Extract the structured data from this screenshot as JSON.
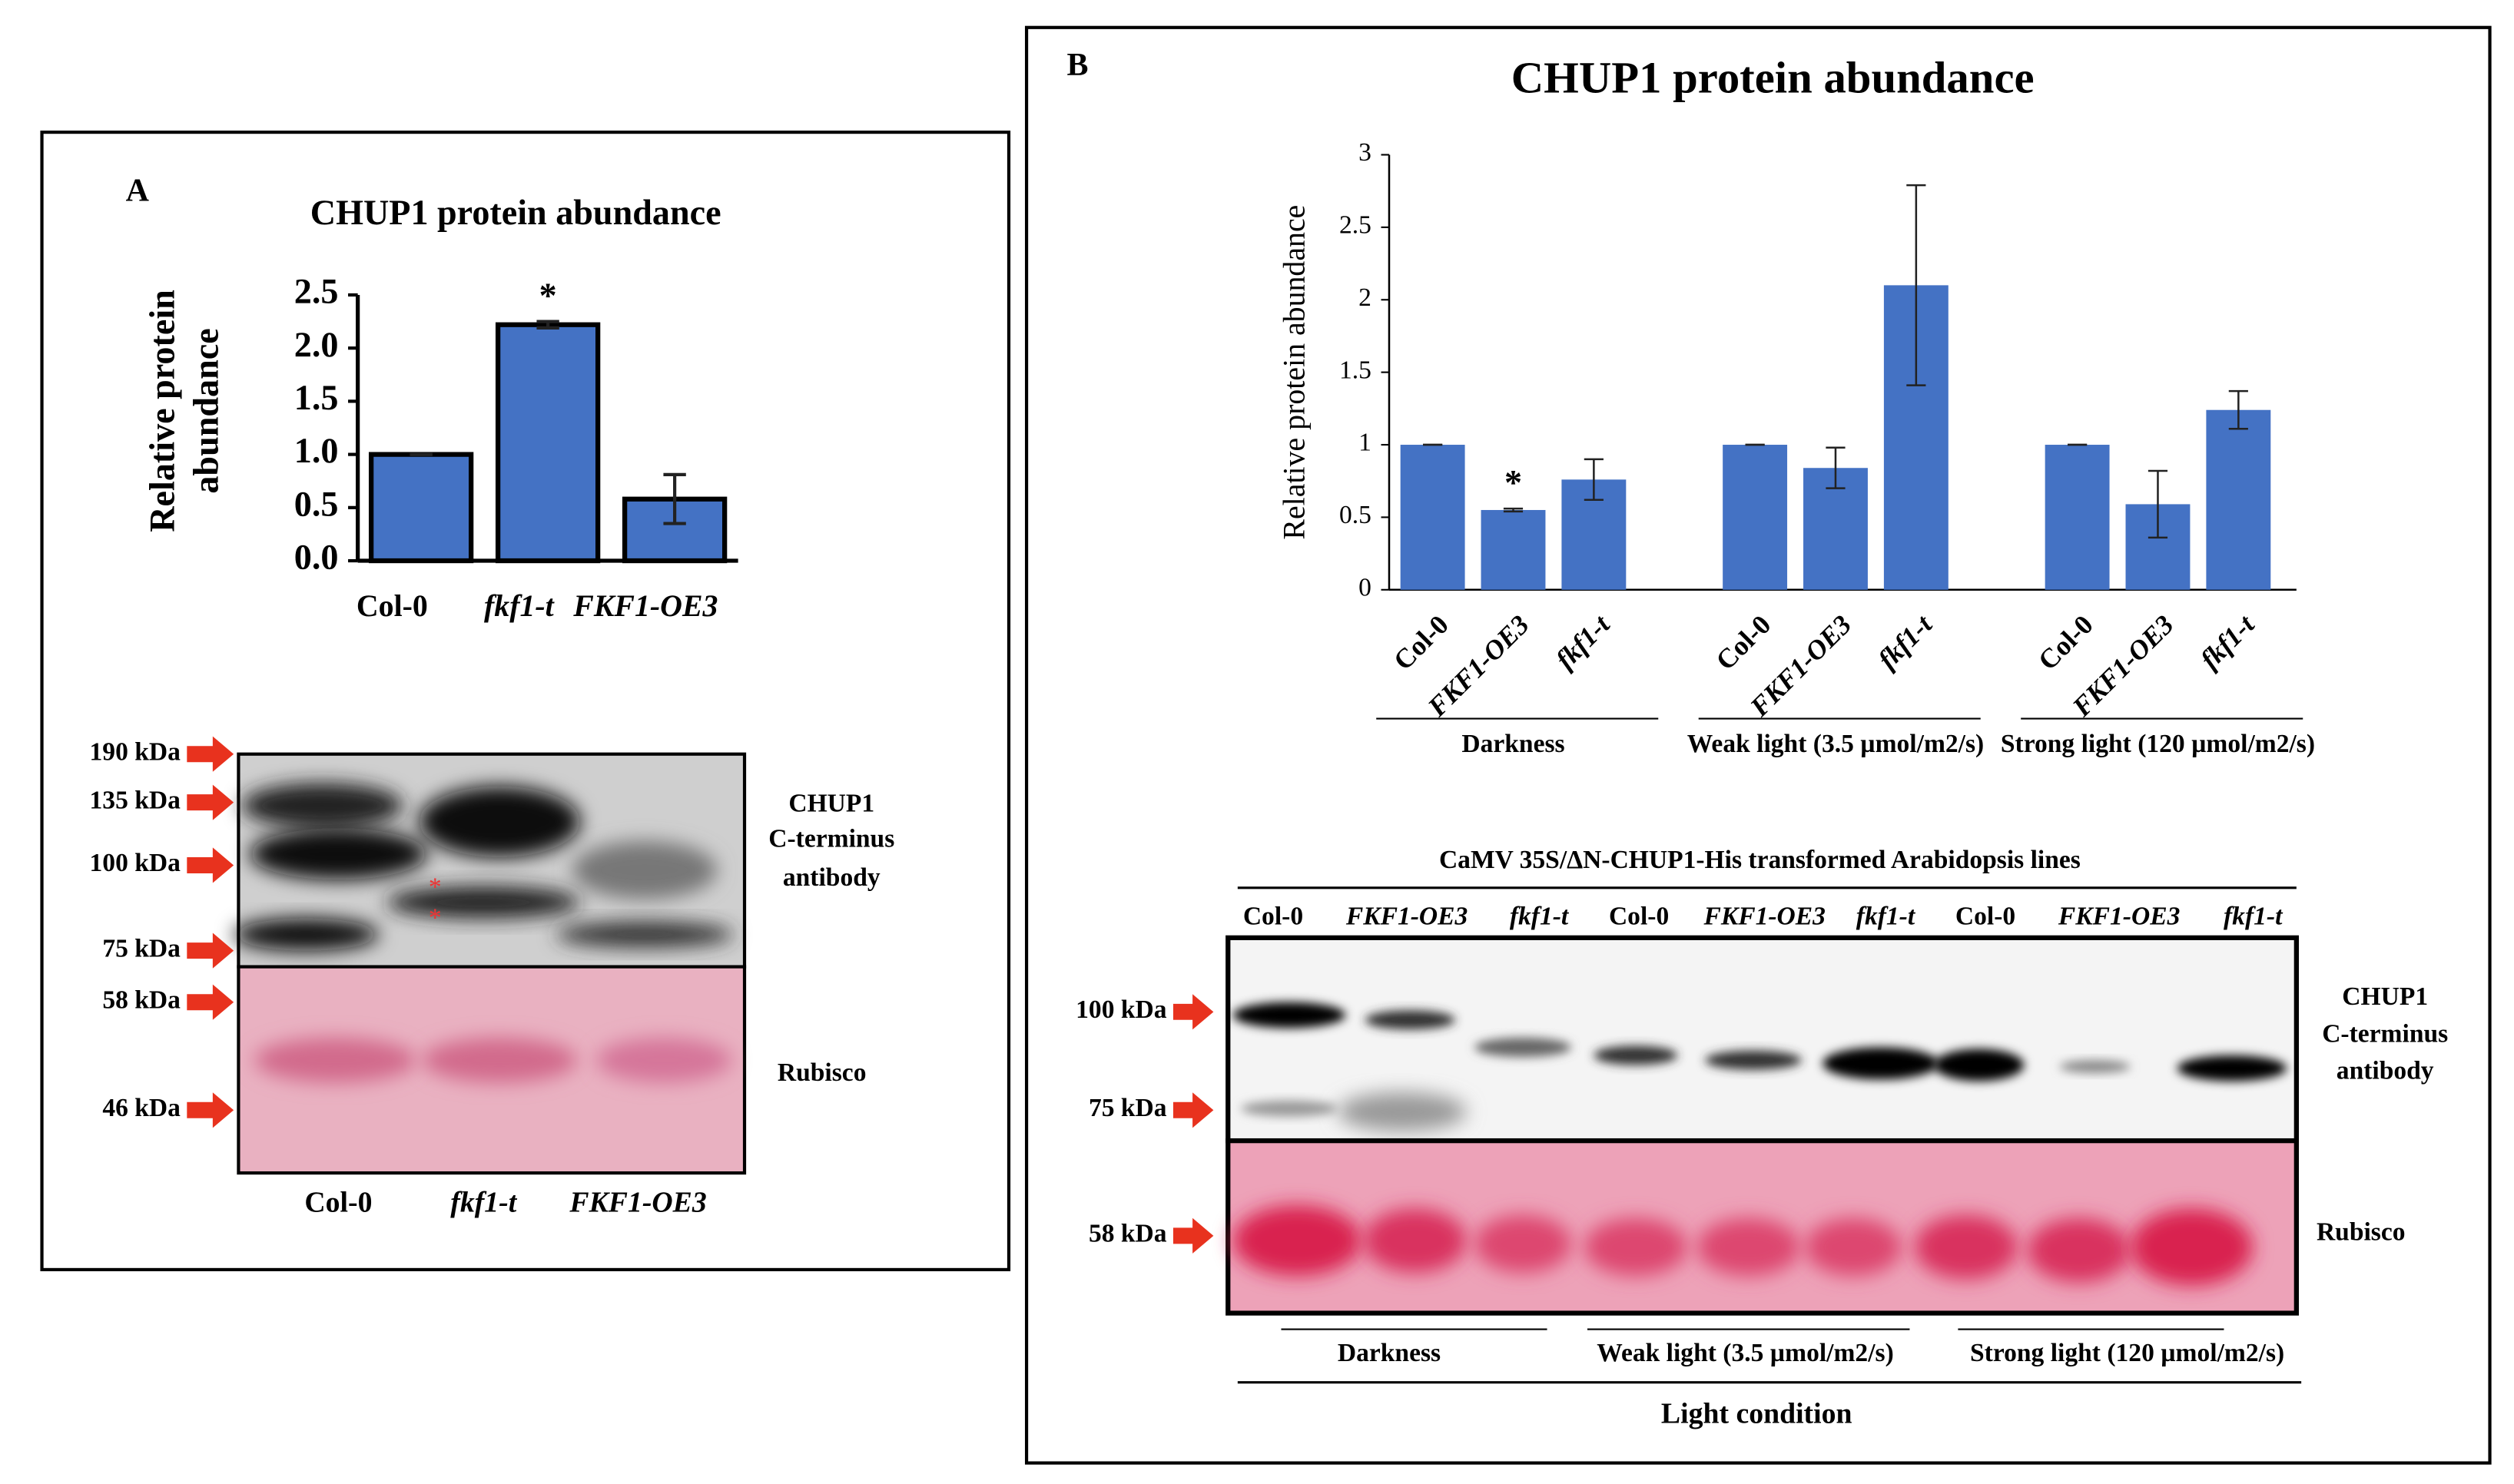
{
  "chart_data": [
    {
      "type": "bar",
      "panel": "A",
      "title": "CHUP1 protein abundance",
      "ylabel": [
        "Relative protein",
        "abundance"
      ],
      "categories": [
        "Col-0",
        "fkf1-t",
        "FKF1-OE3"
      ],
      "category_italic": [
        false,
        true,
        true
      ],
      "values": [
        1.0,
        2.22,
        0.58
      ],
      "errors": [
        0,
        0.03,
        0.23
      ],
      "annotations": [
        null,
        "*",
        null
      ],
      "color": "#4472c4",
      "edge_color": "#000000",
      "ylim": [
        0,
        2.5
      ],
      "yticks": [
        {
          "value": 0,
          "label": "0.0"
        },
        {
          "value": 0.5,
          "label": "0.5"
        },
        {
          "value": 1,
          "label": "1.0"
        },
        {
          "value": 1.5,
          "label": "1.5"
        },
        {
          "value": 2,
          "label": "2.0"
        },
        {
          "value": 2.5,
          "label": "2.5"
        }
      ]
    },
    {
      "type": "grouped_bar",
      "panel": "B",
      "title": "CHUP1 protein abundance",
      "ylabel": "Relative protein abundance",
      "groups": [
        {
          "name": "Darkness",
          "categories": [
            "Col-0",
            "FKF1-OE3",
            "fkf1-t"
          ],
          "italic": [
            false,
            true,
            true
          ],
          "values": [
            1.0,
            0.55,
            0.76
          ],
          "errors": [
            0,
            0.01,
            0.14
          ],
          "annotations": [
            null,
            "*",
            null
          ]
        },
        {
          "name": "Weak light (3.5 µmol/m2/s)",
          "categories": [
            "Col-0",
            "FKF1-OE3",
            "fkf1-t"
          ],
          "italic": [
            false,
            true,
            true
          ],
          "values": [
            1.0,
            0.84,
            2.1
          ],
          "errors": [
            0,
            0.14,
            0.69
          ],
          "annotations": [
            null,
            null,
            null
          ]
        },
        {
          "name": "Strong light (120 µmol/m2/s)",
          "categories": [
            "Col-0",
            "FKF1-OE3",
            "fkf1-t"
          ],
          "italic": [
            false,
            true,
            true
          ],
          "values": [
            1.0,
            0.59,
            1.24
          ],
          "errors": [
            0,
            0.23,
            0.13
          ],
          "annotations": [
            null,
            null,
            null
          ]
        }
      ],
      "color": "#4472c4",
      "ylim": [
        0,
        3
      ],
      "yticks": [
        0,
        0.5,
        1,
        1.5,
        2,
        2.5,
        3
      ]
    }
  ],
  "blots": {
    "A": {
      "markers": [
        "190 kDa",
        "135 kDa",
        "100 kDa",
        "75 kDa",
        "58 kDa",
        "46 kDa"
      ],
      "antibody": [
        "CHUP1",
        "C-terminus",
        "antibody"
      ],
      "loading": "Rubisco",
      "lanes": [
        "Col-0",
        "fkf1-t",
        "FKF1-OE3"
      ]
    },
    "B": {
      "header": "CaMV 35S/ΔN-CHUP1-His transformed Arabidopsis lines",
      "lanes": [
        "Col-0",
        "FKF1-OE3",
        "fkf1-t",
        "Col-0",
        "FKF1-OE3",
        "fkf1-t",
        "Col-0",
        "FKF1-OE3",
        "fkf1-t"
      ],
      "markers": [
        "100 kDa",
        "75 kDa",
        "58 kDa"
      ],
      "antibody": [
        "CHUP1",
        "C-terminus",
        "antibody"
      ],
      "loading": "Rubisco",
      "conditions": [
        "Darkness",
        "Weak light (3.5 µmol/m2/s)",
        "Strong light (120 µmol/m2/s)"
      ],
      "footer": "Light condition"
    }
  }
}
